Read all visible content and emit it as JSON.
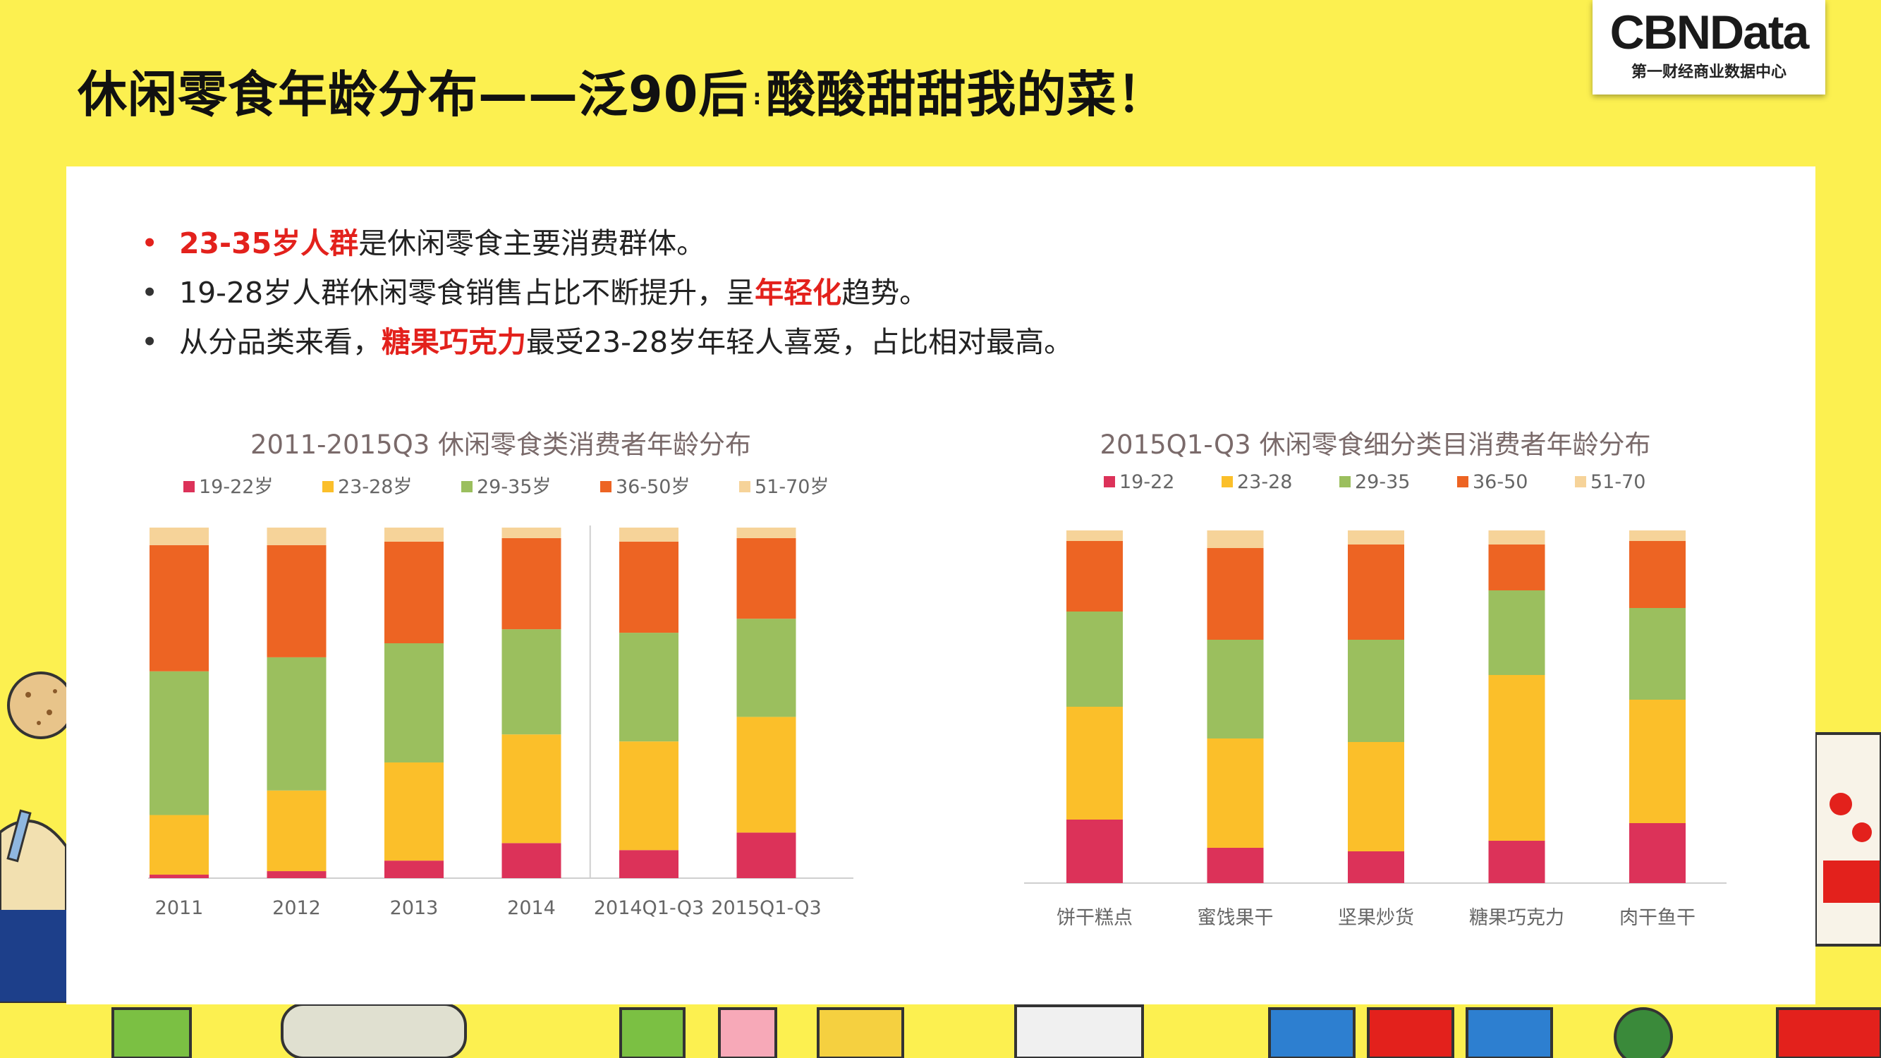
{
  "title": {
    "part1": "休闲零食年龄分布——泛90后",
    "sep": ":",
    "part2": "酸酸甜甜我的菜！"
  },
  "logo": {
    "main": "CBNData",
    "sub": "第一财经商业数据中心"
  },
  "bullets": [
    {
      "hl": "23-35岁人群",
      "rest": "是休闲零食主要消费群体。"
    },
    {
      "pre": "19-28岁人群休闲零食销售占比不断提升，呈",
      "hl": "年轻化",
      "post": "趋势。"
    },
    {
      "pre": "从分品类来看，",
      "hl": "糖果巧克力",
      "post": "最受23-28岁年轻人喜爱，占比相对最高。"
    }
  ],
  "colors": {
    "background": "#fcf050",
    "highlight": "#e3211c",
    "series": [
      "#dc3259",
      "#fbbf2a",
      "#9bbf5e",
      "#ed6423",
      "#f6d399"
    ]
  },
  "chart_data": [
    {
      "type": "bar",
      "stacked": true,
      "normalized": true,
      "title": "2011-2015Q3 休闲零食类消费者年龄分布",
      "legend_position": "top",
      "grid": false,
      "categories": [
        "2011",
        "2012",
        "2013",
        "2014",
        "2014Q1-Q3",
        "2015Q1-Q3"
      ],
      "separator_after_category": "2014",
      "series": [
        {
          "name": "19-22岁",
          "values": [
            1,
            2,
            5,
            10,
            8,
            13
          ]
        },
        {
          "name": "23-28岁",
          "values": [
            17,
            23,
            28,
            31,
            31,
            33
          ]
        },
        {
          "name": "29-35岁",
          "values": [
            41,
            38,
            34,
            30,
            31,
            28
          ]
        },
        {
          "name": "36-50岁",
          "values": [
            36,
            32,
            29,
            26,
            26,
            23
          ]
        },
        {
          "name": "51-70岁",
          "values": [
            5,
            5,
            4,
            3,
            4,
            3
          ]
        }
      ]
    },
    {
      "type": "bar",
      "stacked": true,
      "normalized": true,
      "title": "2015Q1-Q3 休闲零食细分类目消费者年龄分布",
      "legend_position": "top",
      "grid": false,
      "categories": [
        "饼干糕点",
        "蜜饯果干",
        "坚果炒货",
        "糖果巧克力",
        "肉干鱼干"
      ],
      "series": [
        {
          "name": "19-22",
          "values": [
            18,
            10,
            9,
            12,
            17
          ]
        },
        {
          "name": "23-28",
          "values": [
            32,
            31,
            31,
            47,
            35
          ]
        },
        {
          "name": "29-35",
          "values": [
            27,
            28,
            29,
            24,
            26
          ]
        },
        {
          "name": "36-50",
          "values": [
            20,
            26,
            27,
            13,
            19
          ]
        },
        {
          "name": "51-70",
          "values": [
            3,
            5,
            4,
            4,
            3
          ]
        }
      ]
    }
  ]
}
